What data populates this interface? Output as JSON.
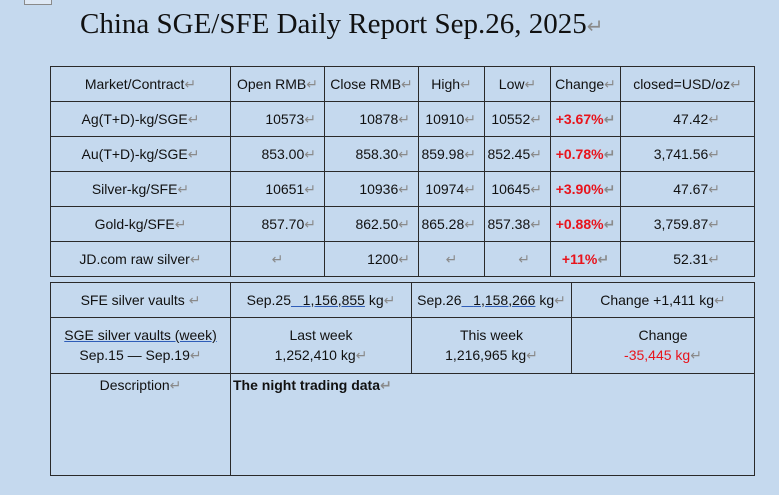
{
  "title": "China SGE/SFE Daily Report Sep.26, 2025",
  "mark": "↵",
  "table": {
    "headers": [
      "Market/Contract",
      "Open RMB",
      "Close RMB",
      "High",
      "Low",
      "Change",
      "closed=USD/oz"
    ],
    "rows": [
      {
        "contract": "Ag(T+D)-kg/SGE",
        "open": "10573",
        "close": "10878",
        "high": "10910",
        "low": "10552",
        "change": "+3.67%",
        "usd": "47.42"
      },
      {
        "contract": "Au(T+D)-kg/SGE",
        "open": "853.00",
        "close": "858.30",
        "high": "859.98",
        "low": "852.45",
        "change": "+0.78%",
        "usd": "3,741.56"
      },
      {
        "contract": "Silver-kg/SFE",
        "open": "10651",
        "close": "10936",
        "high": "10974",
        "low": "10645",
        "change": "+3.90%",
        "usd": "47.67"
      },
      {
        "contract": "Gold-kg/SFE",
        "open": "857.70",
        "close": "862.50",
        "high": "865.28",
        "low": "857.38",
        "change": "+0.88%",
        "usd": "3,759.87"
      },
      {
        "contract": "JD.com raw silver",
        "open": "",
        "close": "1200",
        "high": "",
        "low": "",
        "change": "+11%",
        "usd": "52.31"
      }
    ]
  },
  "sfe_vaults": {
    "label": "SFE silver vaults",
    "prev_date": "Sep.25",
    "prev_value": "1,156,855",
    "curr_date": "Sep.26",
    "curr_value": "1,158,266",
    "unit": "kg",
    "change": "Change +1,411 kg"
  },
  "sge_vaults": {
    "label": "SGE silver vaults (week)",
    "range": "Sep.15 — Sep.19",
    "last_week_label": "Last week",
    "last_week_value": "1,252,410 kg",
    "this_week_label": "This week",
    "this_week_value": "1,216,965 kg",
    "change_label": "Change",
    "change_value": "-35,445 kg"
  },
  "description": {
    "label": "Description",
    "text": "The night trading data"
  },
  "colors": {
    "background": "#c5d9ee",
    "positive_change": "#e8131b",
    "border": "#2a2a2a"
  }
}
